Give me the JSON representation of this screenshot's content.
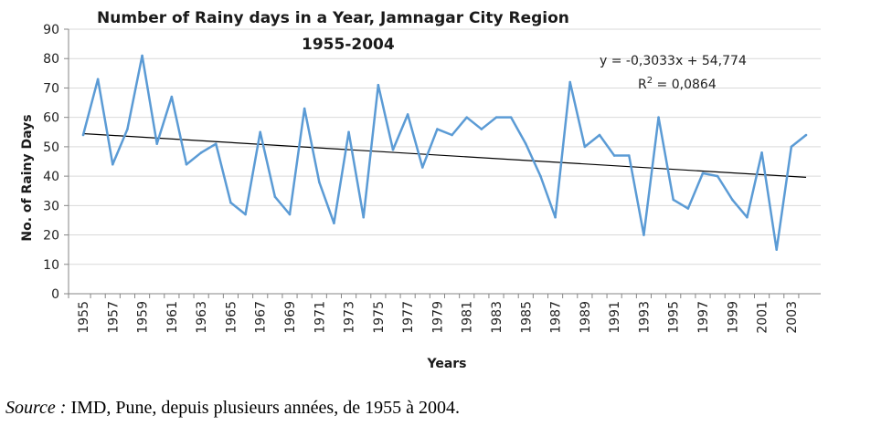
{
  "chart_data": {
    "type": "line",
    "title": "Number of Rainy days in a Year, Jamnagar City Region",
    "subtitle": "1955-2004",
    "xlabel": "Years",
    "ylabel": "No. of Rainy Days",
    "ylim": [
      0,
      90
    ],
    "yticks": [
      "0",
      "10",
      "20",
      "30",
      "40",
      "50",
      "60",
      "70",
      "80",
      "90"
    ],
    "xtick_labels": [
      "1955",
      "1957",
      "1959",
      "1961",
      "1963",
      "1965",
      "1967",
      "1969",
      "1971",
      "1973",
      "1975",
      "1977",
      "1979",
      "1981",
      "1983",
      "1985",
      "1987",
      "1989",
      "1991",
      "1993",
      "1995",
      "1997",
      "1999",
      "2001",
      "2003"
    ],
    "grid": "horizontal",
    "legend": "none",
    "x": [
      1955,
      1956,
      1957,
      1958,
      1959,
      1960,
      1961,
      1962,
      1963,
      1964,
      1965,
      1966,
      1967,
      1968,
      1969,
      1970,
      1971,
      1972,
      1973,
      1974,
      1975,
      1976,
      1977,
      1978,
      1979,
      1980,
      1981,
      1982,
      1983,
      1984,
      1985,
      1986,
      1987,
      1988,
      1989,
      1990,
      1991,
      1992,
      1993,
      1994,
      1995,
      1996,
      1997,
      1998,
      1999,
      2000,
      2001,
      2002,
      2003,
      2004
    ],
    "series": [
      {
        "values": [
          54,
          73,
          44,
          56,
          81,
          51,
          67,
          44,
          48,
          51,
          31,
          27,
          55,
          33,
          27,
          63,
          38,
          24,
          55,
          26,
          71,
          49,
          61,
          43,
          56,
          54,
          60,
          56,
          60,
          60,
          51,
          40,
          26,
          72,
          50,
          54,
          47,
          47,
          20,
          60,
          32,
          29,
          41,
          40,
          32,
          26,
          48,
          15,
          50,
          54
        ],
        "color": "#5b9bd5"
      }
    ],
    "trendline": {
      "slope": -0.3033,
      "intercept": 54.774,
      "equation": "y = -0,3033x + 54,774",
      "r_squared_prefix": "R",
      "r_squared_sup": "2",
      "r_squared_value": " = 0,0864",
      "color": "#000000"
    }
  },
  "footer": {
    "source_label": "Source :",
    "source_text": " IMD, Pune, depuis plusieurs années, de 1955 à 2004."
  }
}
